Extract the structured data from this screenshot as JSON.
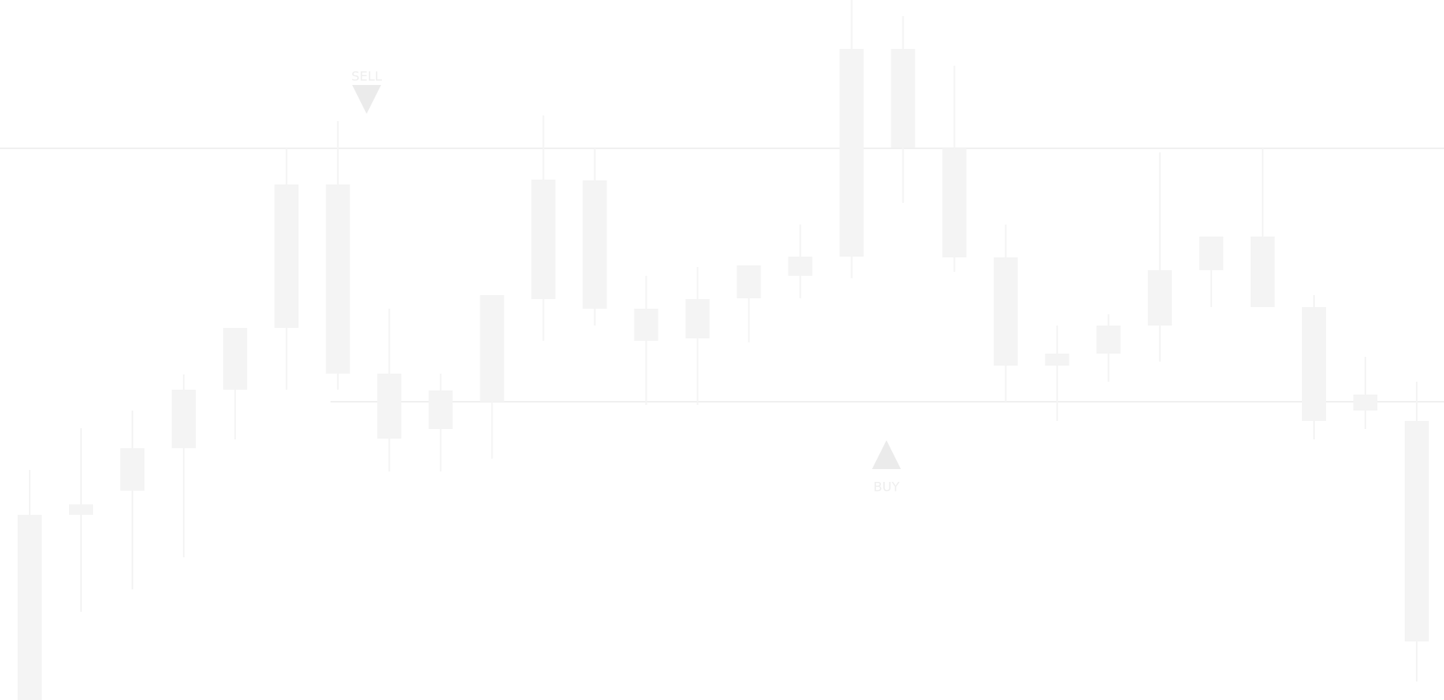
{
  "chart_data": {
    "type": "candlestick",
    "color": "#f4f4f4",
    "level_color": "#ebebeb",
    "ylim": [
      0,
      873
    ],
    "levels": [
      688,
      372
    ],
    "annotations": [
      "SELL",
      "BUY"
    ],
    "candles": [
      {
        "open": 0,
        "high": 287,
        "low": 0,
        "close": 231
      },
      {
        "open": 231,
        "high": 339,
        "low": 110,
        "close": 244
      },
      {
        "open": 261,
        "high": 361,
        "low": 138,
        "close": 314
      },
      {
        "open": 314,
        "high": 406,
        "low": 178,
        "close": 387
      },
      {
        "open": 387,
        "high": 464,
        "low": 325,
        "close": 464
      },
      {
        "open": 464,
        "high": 688,
        "low": 387,
        "close": 643
      },
      {
        "open": 407,
        "high": 722,
        "low": 387,
        "close": 643
      },
      {
        "open": 326,
        "high": 488,
        "low": 285,
        "close": 407
      },
      {
        "open": 338,
        "high": 407,
        "low": 285,
        "close": 386
      },
      {
        "open": 372,
        "high": 505,
        "low": 301,
        "close": 505
      },
      {
        "open": 500,
        "high": 729,
        "low": 448,
        "close": 649
      },
      {
        "open": 488,
        "high": 688,
        "low": 467,
        "close": 648
      },
      {
        "open": 448,
        "high": 529,
        "low": 368,
        "close": 488
      },
      {
        "open": 451,
        "high": 540,
        "low": 368,
        "close": 500
      },
      {
        "open": 501,
        "high": 542,
        "low": 446,
        "close": 542
      },
      {
        "open": 529,
        "high": 593,
        "low": 501,
        "close": 553
      },
      {
        "open": 553,
        "high": 873,
        "low": 526,
        "close": 812
      },
      {
        "open": 689,
        "high": 853,
        "low": 620,
        "close": 812
      },
      {
        "open": 552,
        "high": 791,
        "low": 534,
        "close": 688
      },
      {
        "open": 417,
        "high": 593,
        "low": 372,
        "close": 552
      },
      {
        "open": 417,
        "high": 467,
        "low": 348,
        "close": 432
      },
      {
        "open": 432,
        "high": 481,
        "low": 397,
        "close": 467
      },
      {
        "open": 467,
        "high": 683,
        "low": 422,
        "close": 536
      },
      {
        "open": 536,
        "high": 578,
        "low": 490,
        "close": 578
      },
      {
        "open": 490,
        "high": 688,
        "low": 490,
        "close": 578
      },
      {
        "open": 348,
        "high": 505,
        "low": 325,
        "close": 490
      },
      {
        "open": 361,
        "high": 428,
        "low": 338,
        "close": 381
      },
      {
        "open": 73,
        "high": 397,
        "low": 23,
        "close": 348
      }
    ]
  }
}
